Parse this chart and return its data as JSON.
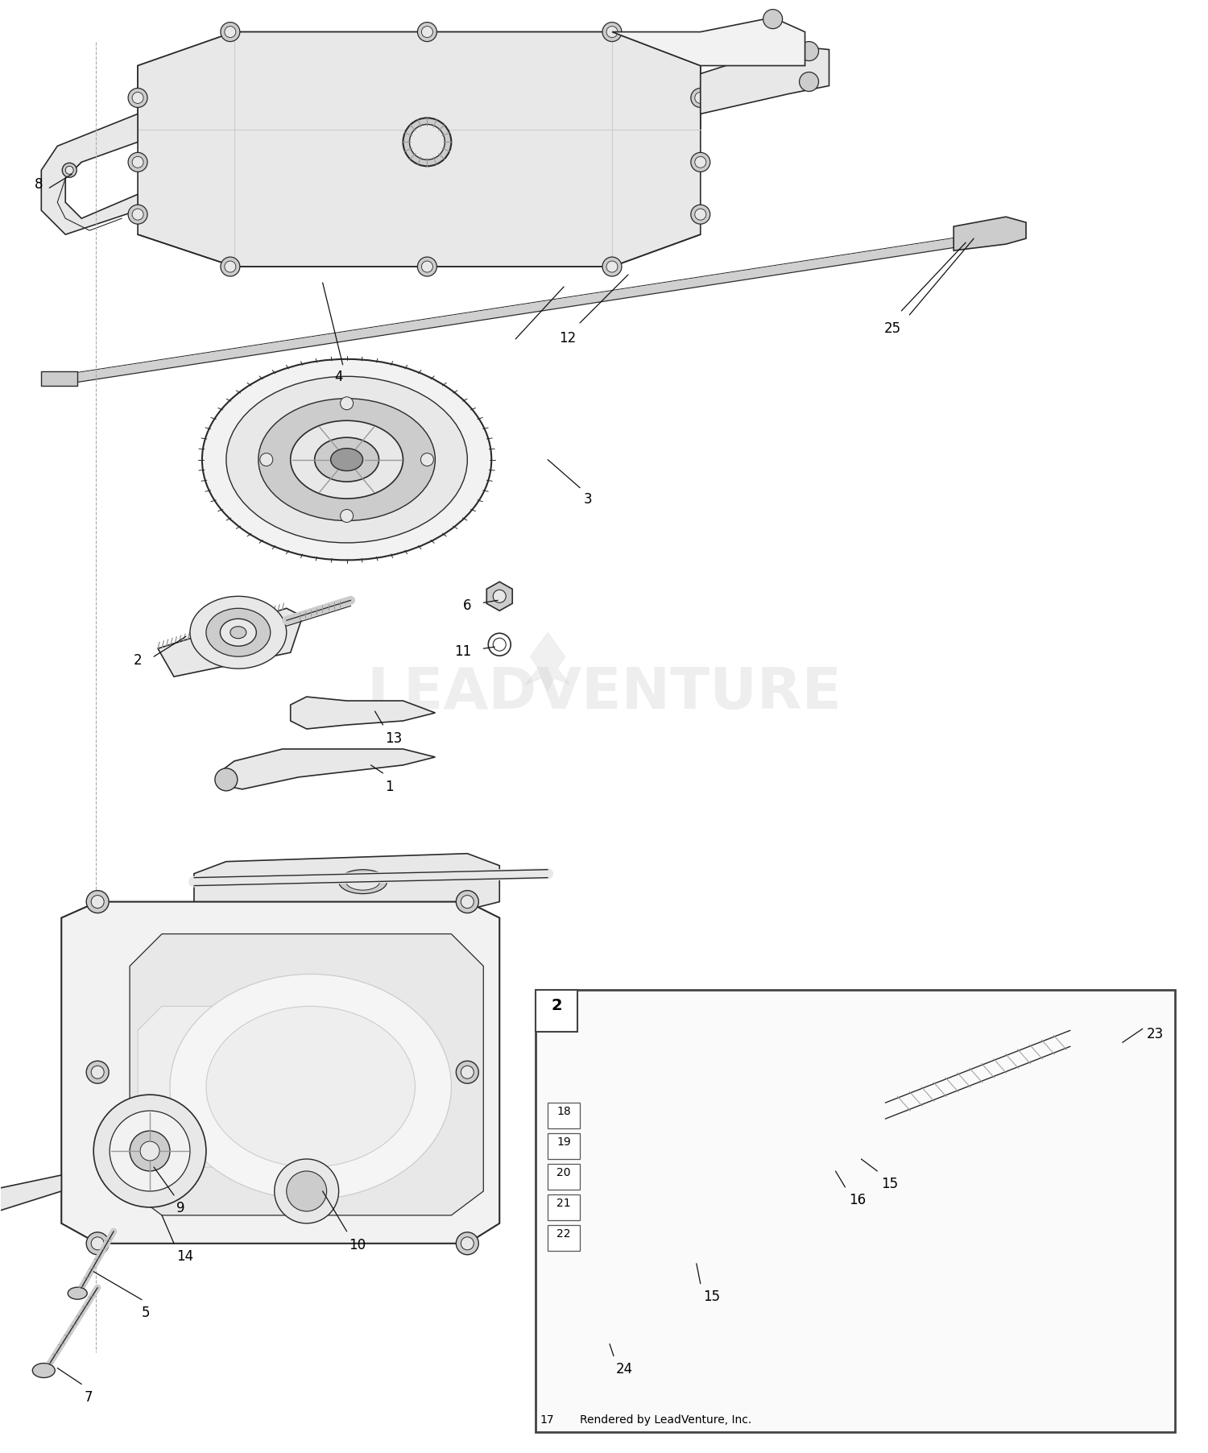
{
  "bg_color": "#ffffff",
  "line_color": "#2a2a2a",
  "fig_width": 15.0,
  "fig_height": 18.04,
  "dpi": 100,
  "watermark_text": "LEADVENTURE",
  "credit_text": "Rendered by LeadVenture, Inc.",
  "part_numbers": [
    "1",
    "2",
    "3",
    "4",
    "5",
    "6",
    "7",
    "8",
    "9",
    "10",
    "11",
    "12",
    "13",
    "14",
    "15",
    "16",
    "17",
    "18",
    "19",
    "20",
    "21",
    "22",
    "23",
    "24",
    "25"
  ],
  "gray_light": "#e8e8e8",
  "gray_mid": "#cccccc",
  "gray_dark": "#999999",
  "gray_fill": "#f2f2f2"
}
